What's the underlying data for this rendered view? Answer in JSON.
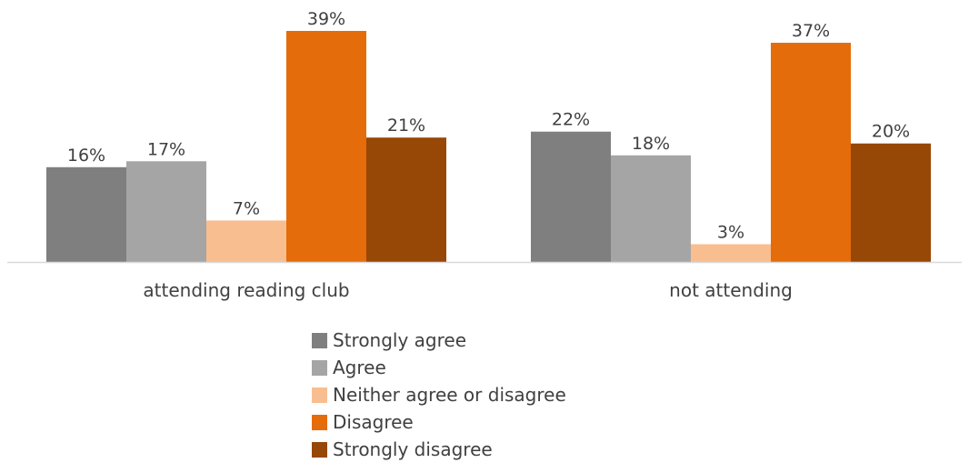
{
  "chart_data": {
    "type": "bar",
    "categories": [
      "attending reading club",
      "not attending"
    ],
    "series": [
      {
        "name": "Strongly agree",
        "values": [
          16,
          22
        ],
        "labels": [
          "16%",
          "22%"
        ],
        "color": "#7f7f7f"
      },
      {
        "name": "Agree",
        "values": [
          17,
          18
        ],
        "labels": [
          "17%",
          "18%"
        ],
        "color": "#a5a5a5"
      },
      {
        "name": "Neither agree or disagree",
        "values": [
          7,
          3
        ],
        "labels": [
          "7%",
          "3%"
        ],
        "color": "#f9be8f"
      },
      {
        "name": "Disagree",
        "values": [
          39,
          37
        ],
        "labels": [
          "39%",
          "37%"
        ],
        "color": "#e46c0a"
      },
      {
        "name": "Strongly disagree",
        "values": [
          21,
          20
        ],
        "labels": [
          "21%",
          "20%"
        ],
        "color": "#974706"
      }
    ],
    "ylim": [
      0,
      39
    ],
    "grid": false,
    "legend_position": "bottom",
    "axis_color": "#d9d9d9"
  }
}
